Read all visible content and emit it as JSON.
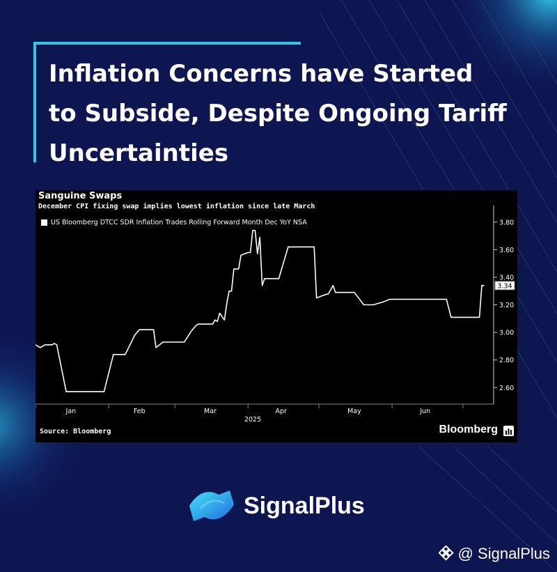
{
  "headline": "Inflation Concerns have Started to Subside, Despite Ongoing Tariff Uncertainties",
  "colors": {
    "background": "#0d1650",
    "accent": "#32c8e6",
    "line": "#ffffff",
    "chart_bg": "#000000"
  },
  "brand": {
    "name": "SignalPlus",
    "logo_icon": "signalplus-wave-icon"
  },
  "watermark": {
    "handle": "@ SignalPlus",
    "icon": "diamond-icon"
  },
  "chart_data": {
    "type": "line",
    "title": "Sanguine Swaps",
    "subtitle": "December CPI fixing swap implies lowest inflation since late March",
    "legend": [
      "US Bloomberg DTCC SDR Inflation Trades Rolling Forward Month Dec YoY NSA"
    ],
    "series": [
      {
        "name": "US Bloomberg DTCC SDR Inflation Trades Rolling Forward Month Dec YoY NSA",
        "x": [
          "2025-01-01",
          "2025-01-03",
          "2025-01-05",
          "2025-01-06",
          "2025-01-08",
          "2025-01-09",
          "2025-01-10",
          "2025-01-14",
          "2025-01-15",
          "2025-01-26",
          "2025-01-27",
          "2025-01-28",
          "2025-01-30",
          "2025-02-03",
          "2025-02-04",
          "2025-02-06",
          "2025-02-08",
          "2025-02-12",
          "2025-02-14",
          "2025-02-15",
          "2025-02-16",
          "2025-02-19",
          "2025-02-20",
          "2025-02-21",
          "2025-02-24",
          "2025-02-26",
          "2025-02-28",
          "2025-03-04",
          "2025-03-05",
          "2025-03-08",
          "2025-03-10",
          "2025-03-11",
          "2025-03-14",
          "2025-03-17",
          "2025-03-18",
          "2025-03-19",
          "2025-03-20",
          "2025-03-22",
          "2025-03-23",
          "2025-03-24",
          "2025-03-25",
          "2025-03-26",
          "2025-03-28",
          "2025-03-29",
          "2025-04-01",
          "2025-04-02",
          "2025-04-03",
          "2025-04-04",
          "2025-04-05",
          "2025-04-06",
          "2025-04-07",
          "2025-04-08",
          "2025-04-10",
          "2025-04-12",
          "2025-04-14",
          "2025-04-18",
          "2025-04-19",
          "2025-04-23",
          "2025-04-24",
          "2025-04-26",
          "2025-04-29",
          "2025-04-30",
          "2025-05-03",
          "2025-05-05",
          "2025-05-07",
          "2025-05-08",
          "2025-05-09",
          "2025-05-10",
          "2025-05-13",
          "2025-05-14",
          "2025-05-16",
          "2025-05-20",
          "2025-05-21",
          "2025-05-24",
          "2025-05-28",
          "2025-05-31",
          "2025-06-01",
          "2025-06-06",
          "2025-06-09",
          "2025-06-13",
          "2025-06-14",
          "2025-06-18",
          "2025-06-19",
          "2025-06-20",
          "2025-06-23",
          "2025-06-24",
          "2025-06-26",
          "2025-06-30",
          "2025-07-04",
          "2025-07-08",
          "2025-07-09",
          "2025-07-10"
        ],
        "y": [
          2.91,
          2.89,
          2.91,
          2.91,
          2.91,
          2.92,
          2.91,
          2.57,
          2.57,
          2.57,
          2.57,
          2.57,
          2.57,
          2.84,
          2.84,
          2.84,
          2.84,
          2.98,
          3.02,
          3.02,
          3.02,
          3.02,
          3.02,
          2.89,
          2.93,
          2.93,
          2.93,
          2.93,
          2.93,
          3.01,
          3.05,
          3.06,
          3.06,
          3.06,
          3.09,
          3.08,
          3.14,
          3.09,
          3.21,
          3.3,
          3.3,
          3.46,
          3.46,
          3.56,
          3.58,
          3.58,
          3.74,
          3.74,
          3.57,
          3.69,
          3.34,
          3.39,
          3.39,
          3.39,
          3.39,
          3.62,
          3.62,
          3.62,
          3.62,
          3.62,
          3.62,
          3.25,
          3.27,
          3.28,
          3.34,
          3.29,
          3.29,
          3.29,
          3.29,
          3.29,
          3.29,
          3.2,
          3.2,
          3.2,
          3.22,
          3.24,
          3.24,
          3.24,
          3.24,
          3.24,
          3.24,
          3.24,
          3.24,
          3.24,
          3.24,
          3.24,
          3.11,
          3.11,
          3.11,
          3.11,
          3.34,
          3.34
        ]
      }
    ],
    "x_ticks": [
      "Jan",
      "Feb",
      "Mar",
      "Apr",
      "May",
      "Jun"
    ],
    "x_year_label": "2025",
    "y_ticks": [
      "3.80",
      "3.60",
      "3.40",
      "3.20",
      "3.00",
      "2.80",
      "2.60"
    ],
    "ylim": [
      2.48,
      3.88
    ],
    "last_value_label": "3.34",
    "source": "Source: Bloomberg",
    "publisher": "Bloomberg",
    "grid": false,
    "legend_placement": "top-left"
  }
}
